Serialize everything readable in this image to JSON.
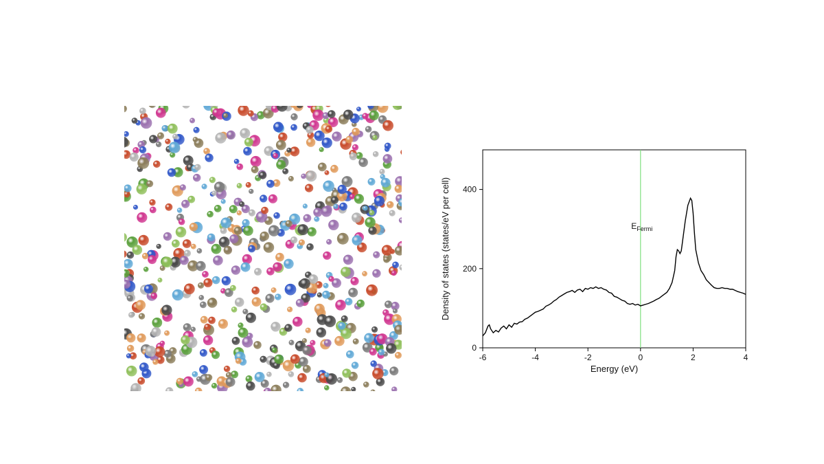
{
  "structure_image": {
    "description_label": "",
    "atom_colors": [
      "#5aa03c",
      "#9a6fae",
      "#7a7a7a",
      "#d0358f",
      "#8fbf5a",
      "#c84a2a",
      "#2f56c8",
      "#5fa8d6",
      "#8b7d5a",
      "#4a4a4a",
      "#b3b3b3",
      "#e09a5a"
    ]
  },
  "chart_data": {
    "type": "line",
    "title": "",
    "xlabel": "Energy (eV)",
    "ylabel": "Density of states (states/eV per cell)",
    "xlim": [
      -6,
      4
    ],
    "ylim": [
      0,
      500
    ],
    "xticks": [
      -6,
      -4,
      -2,
      0,
      2,
      4
    ],
    "yticks": [
      0,
      200,
      400
    ],
    "grid": false,
    "line_color": "#000000",
    "series": [
      {
        "x": [
          -6.0,
          -5.9,
          -5.8,
          -5.75,
          -5.7,
          -5.6,
          -5.5,
          -5.4,
          -5.3,
          -5.2,
          -5.1,
          -5.0,
          -4.9,
          -4.8,
          -4.7,
          -4.6,
          -4.5,
          -4.4,
          -4.3,
          -4.2,
          -4.1,
          -4.0,
          -3.9,
          -3.8,
          -3.7,
          -3.6,
          -3.5,
          -3.4,
          -3.3,
          -3.2,
          -3.1,
          -3.0,
          -2.9,
          -2.8,
          -2.7,
          -2.6,
          -2.5,
          -2.4,
          -2.3,
          -2.2,
          -2.1,
          -2.0,
          -1.9,
          -1.8,
          -1.7,
          -1.6,
          -1.5,
          -1.4,
          -1.3,
          -1.2,
          -1.1,
          -1.0,
          -0.9,
          -0.8,
          -0.7,
          -0.6,
          -0.5,
          -0.4,
          -0.3,
          -0.2,
          -0.1,
          0.0,
          0.1,
          0.2,
          0.3,
          0.4,
          0.5,
          0.6,
          0.7,
          0.8,
          0.9,
          1.0,
          1.1,
          1.2,
          1.3,
          1.35,
          1.4,
          1.45,
          1.5,
          1.55,
          1.6,
          1.7,
          1.8,
          1.9,
          1.95,
          2.0,
          2.05,
          2.1,
          2.2,
          2.3,
          2.4,
          2.5,
          2.6,
          2.7,
          2.8,
          2.9,
          3.0,
          3.1,
          3.2,
          3.3,
          3.4,
          3.5,
          3.6,
          3.7,
          3.8,
          3.9,
          4.0
        ],
        "y": [
          30,
          38,
          55,
          58,
          48,
          38,
          44,
          40,
          50,
          55,
          48,
          58,
          52,
          62,
          60,
          65,
          66,
          72,
          75,
          80,
          85,
          90,
          92,
          95,
          98,
          105,
          108,
          112,
          118,
          122,
          128,
          132,
          136,
          140,
          142,
          145,
          140,
          146,
          148,
          142,
          150,
          148,
          152,
          150,
          154,
          150,
          152,
          148,
          146,
          140,
          138,
          130,
          128,
          124,
          120,
          118,
          112,
          110,
          112,
          108,
          110,
          106,
          108,
          110,
          112,
          115,
          118,
          122,
          125,
          130,
          135,
          140,
          150,
          165,
          195,
          230,
          248,
          245,
          238,
          245,
          270,
          320,
          360,
          378,
          372,
          340,
          290,
          248,
          215,
          195,
          185,
          172,
          165,
          158,
          152,
          150,
          150,
          152,
          150,
          150,
          148,
          148,
          145,
          142,
          140,
          138,
          135
        ]
      }
    ],
    "vertical_line": {
      "x": 0,
      "color": "#7fe07f"
    },
    "annotation": {
      "text_main": "E",
      "text_sub": "Fermi",
      "x": 0,
      "y": 300
    }
  }
}
